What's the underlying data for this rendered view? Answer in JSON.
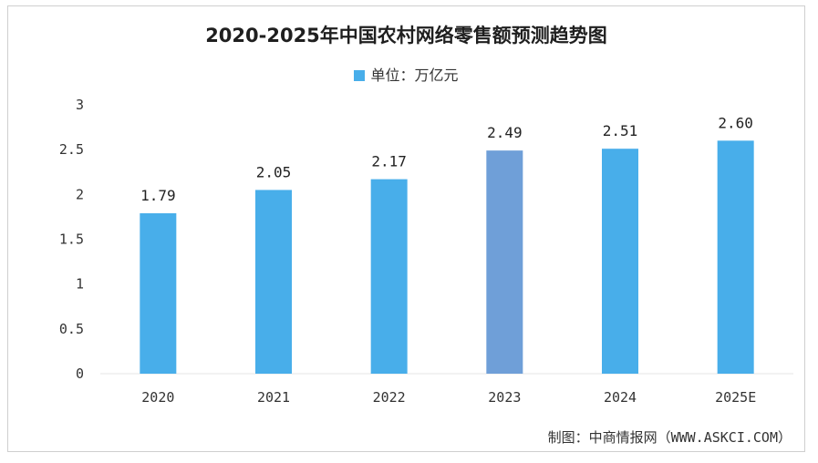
{
  "chart_data": {
    "type": "bar",
    "title": "2020-2025年中国农村网络零售额预测趋势图",
    "legend": {
      "label": "单位：万亿元",
      "position": "top-center"
    },
    "categories": [
      "2020",
      "2021",
      "2022",
      "2023",
      "2024",
      "2025E"
    ],
    "series": [
      {
        "values": [
          1.79,
          2.05,
          2.17,
          2.49,
          2.51,
          2.6
        ]
      }
    ],
    "value_labels": [
      "1.79",
      "2.05",
      "2.17",
      "2.49",
      "2.51",
      "2.60"
    ],
    "ylim": [
      0,
      3
    ],
    "yticks": [
      "0",
      "0.5",
      "1",
      "1.5",
      "2",
      "2.5",
      "3"
    ],
    "grid": false,
    "bar_color": "#48aeea",
    "highlight_color": "#6f9fd8",
    "highlight_index": 3
  },
  "credit": "制图：中商情报网（WWW.ASKCI.COM）"
}
